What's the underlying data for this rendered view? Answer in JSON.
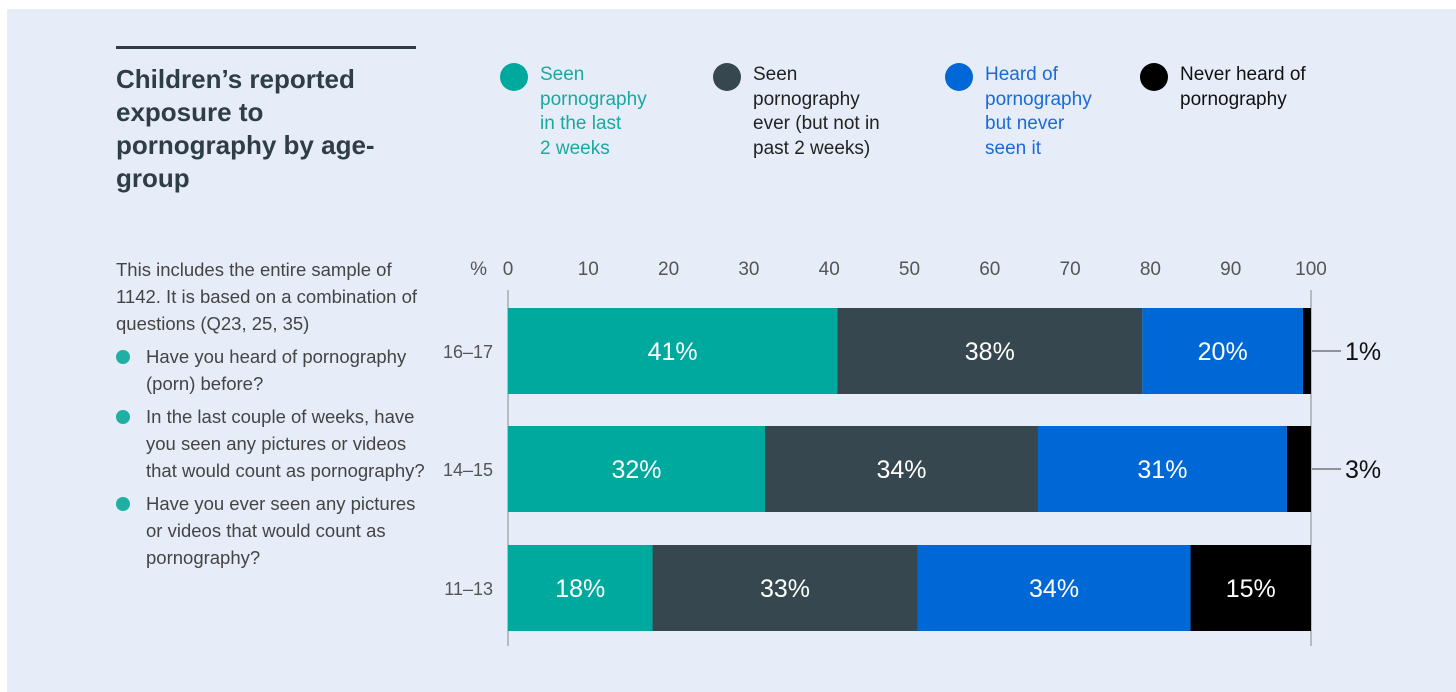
{
  "title": "Children’s reported exposure to pornography by age-group",
  "description": "This includes the entire sample of 1142. It is based on a combination of questions (Q23, 25, 35)",
  "questions": [
    "Have you heard of pornography (porn) before?",
    "In the last couple of weeks, have you seen any pictures or videos that would count as pornography?",
    "Have you ever seen any pictures or videos that would count as pornography?"
  ],
  "chart_data": {
    "type": "bar",
    "orientation": "horizontal-stacked",
    "title": "Children’s reported exposure to pornography by age-group",
    "xlabel": "%",
    "xlim": [
      0,
      100
    ],
    "xticks": [
      "0",
      "10",
      "20",
      "30",
      "40",
      "50",
      "60",
      "70",
      "80",
      "90",
      "100"
    ],
    "categories": [
      "16–17",
      "14–15",
      "11–13"
    ],
    "series": [
      {
        "name": "Seen pornography in the last 2 weeks",
        "legend_text": "Seen\npornography\nin the last\n2 weeks",
        "color": "#00a99d",
        "text_color": "#1aa99e",
        "values": [
          41,
          32,
          18
        ]
      },
      {
        "name": "Seen pornography ever (but not in past 2 weeks)",
        "legend_text": "Seen\npornography\never (but not in\npast 2 weeks)",
        "color": "#37474f",
        "text_color": "#222222",
        "values": [
          38,
          34,
          33
        ]
      },
      {
        "name": "Heard of pornography but never seen it",
        "legend_text": "Heard of\npornography\nbut never\nseen it",
        "color": "#0068d6",
        "text_color": "#1a6ad8",
        "values": [
          20,
          31,
          34
        ]
      },
      {
        "name": "Never heard of pornography",
        "legend_text": "Never heard of\npornography",
        "color": "#000000",
        "text_color": "#111111",
        "values": [
          1,
          3,
          15
        ]
      }
    ],
    "legend": "top",
    "grid": false
  }
}
